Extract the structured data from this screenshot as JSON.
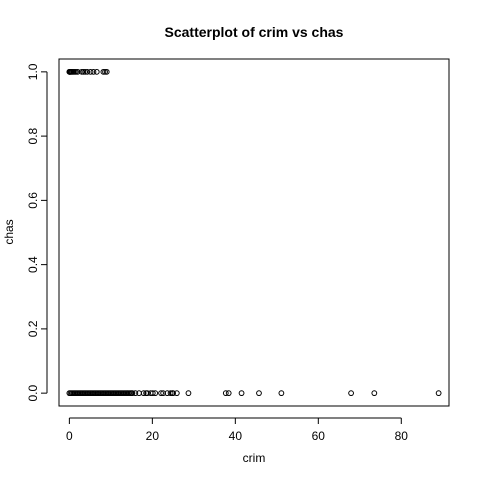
{
  "chart_data": {
    "type": "scatter",
    "title": "Scatterplot of crim vs chas",
    "xlabel": "crim",
    "ylabel": "chas",
    "xlim": [
      -2.5,
      91.5
    ],
    "ylim": [
      -0.04,
      1.04
    ],
    "x_ticks": [
      0,
      20,
      40,
      60,
      80
    ],
    "x_tick_labels": [
      "0",
      "20",
      "40",
      "60",
      "80"
    ],
    "y_ticks": [
      0.0,
      0.2,
      0.4,
      0.6,
      0.8,
      1.0
    ],
    "y_tick_labels": [
      "0.0",
      "0.2",
      "0.4",
      "0.6",
      "0.8",
      "1.0"
    ],
    "grid": false,
    "legend": "none",
    "marker": "open-circle",
    "color": "#000000",
    "points": [
      {
        "x": 0.01,
        "y": 1
      },
      {
        "x": 0.04,
        "y": 1
      },
      {
        "x": 0.09,
        "y": 1
      },
      {
        "x": 0.2,
        "y": 1
      },
      {
        "x": 0.35,
        "y": 1
      },
      {
        "x": 0.55,
        "y": 1
      },
      {
        "x": 0.75,
        "y": 1
      },
      {
        "x": 1.0,
        "y": 1
      },
      {
        "x": 1.3,
        "y": 1
      },
      {
        "x": 1.6,
        "y": 1
      },
      {
        "x": 2.0,
        "y": 1
      },
      {
        "x": 3.0,
        "y": 1
      },
      {
        "x": 3.4,
        "y": 1
      },
      {
        "x": 3.8,
        "y": 1
      },
      {
        "x": 4.3,
        "y": 1
      },
      {
        "x": 5.1,
        "y": 1
      },
      {
        "x": 5.8,
        "y": 1
      },
      {
        "x": 6.6,
        "y": 1
      },
      {
        "x": 8.2,
        "y": 1
      },
      {
        "x": 8.6,
        "y": 1
      },
      {
        "x": 9.0,
        "y": 1
      },
      {
        "x": 0.0,
        "y": 0
      },
      {
        "x": 0.3,
        "y": 0
      },
      {
        "x": 0.6,
        "y": 0
      },
      {
        "x": 0.9,
        "y": 0
      },
      {
        "x": 1.2,
        "y": 0
      },
      {
        "x": 1.5,
        "y": 0
      },
      {
        "x": 1.8,
        "y": 0
      },
      {
        "x": 2.1,
        "y": 0
      },
      {
        "x": 2.4,
        "y": 0
      },
      {
        "x": 2.7,
        "y": 0
      },
      {
        "x": 3.0,
        "y": 0
      },
      {
        "x": 3.3,
        "y": 0
      },
      {
        "x": 3.6,
        "y": 0
      },
      {
        "x": 3.9,
        "y": 0
      },
      {
        "x": 4.2,
        "y": 0
      },
      {
        "x": 4.5,
        "y": 0
      },
      {
        "x": 4.8,
        "y": 0
      },
      {
        "x": 5.1,
        "y": 0
      },
      {
        "x": 5.4,
        "y": 0
      },
      {
        "x": 5.7,
        "y": 0
      },
      {
        "x": 6.0,
        "y": 0
      },
      {
        "x": 6.3,
        "y": 0
      },
      {
        "x": 6.6,
        "y": 0
      },
      {
        "x": 6.9,
        "y": 0
      },
      {
        "x": 7.2,
        "y": 0
      },
      {
        "x": 7.5,
        "y": 0
      },
      {
        "x": 7.8,
        "y": 0
      },
      {
        "x": 8.1,
        "y": 0
      },
      {
        "x": 8.4,
        "y": 0
      },
      {
        "x": 8.7,
        "y": 0
      },
      {
        "x": 9.0,
        "y": 0
      },
      {
        "x": 9.3,
        "y": 0
      },
      {
        "x": 9.6,
        "y": 0
      },
      {
        "x": 9.9,
        "y": 0
      },
      {
        "x": 10.2,
        "y": 0
      },
      {
        "x": 10.5,
        "y": 0
      },
      {
        "x": 10.8,
        "y": 0
      },
      {
        "x": 11.1,
        "y": 0
      },
      {
        "x": 11.4,
        "y": 0
      },
      {
        "x": 11.7,
        "y": 0
      },
      {
        "x": 12.0,
        "y": 0
      },
      {
        "x": 12.3,
        "y": 0
      },
      {
        "x": 12.6,
        "y": 0
      },
      {
        "x": 12.9,
        "y": 0
      },
      {
        "x": 13.2,
        "y": 0
      },
      {
        "x": 13.5,
        "y": 0
      },
      {
        "x": 13.8,
        "y": 0
      },
      {
        "x": 14.1,
        "y": 0
      },
      {
        "x": 14.4,
        "y": 0
      },
      {
        "x": 14.7,
        "y": 0
      },
      {
        "x": 15.0,
        "y": 0
      },
      {
        "x": 15.2,
        "y": 0
      },
      {
        "x": 15.9,
        "y": 0
      },
      {
        "x": 16.8,
        "y": 0
      },
      {
        "x": 17.9,
        "y": 0
      },
      {
        "x": 18.5,
        "y": 0
      },
      {
        "x": 18.8,
        "y": 0
      },
      {
        "x": 19.6,
        "y": 0
      },
      {
        "x": 20.1,
        "y": 0
      },
      {
        "x": 20.7,
        "y": 0
      },
      {
        "x": 22.1,
        "y": 0
      },
      {
        "x": 22.6,
        "y": 0
      },
      {
        "x": 23.6,
        "y": 0
      },
      {
        "x": 24.4,
        "y": 0
      },
      {
        "x": 24.8,
        "y": 0
      },
      {
        "x": 25.0,
        "y": 0
      },
      {
        "x": 25.9,
        "y": 0
      },
      {
        "x": 28.7,
        "y": 0
      },
      {
        "x": 37.7,
        "y": 0
      },
      {
        "x": 38.4,
        "y": 0
      },
      {
        "x": 41.5,
        "y": 0
      },
      {
        "x": 45.7,
        "y": 0
      },
      {
        "x": 51.1,
        "y": 0
      },
      {
        "x": 67.9,
        "y": 0
      },
      {
        "x": 73.5,
        "y": 0
      },
      {
        "x": 89.0,
        "y": 0
      }
    ]
  }
}
